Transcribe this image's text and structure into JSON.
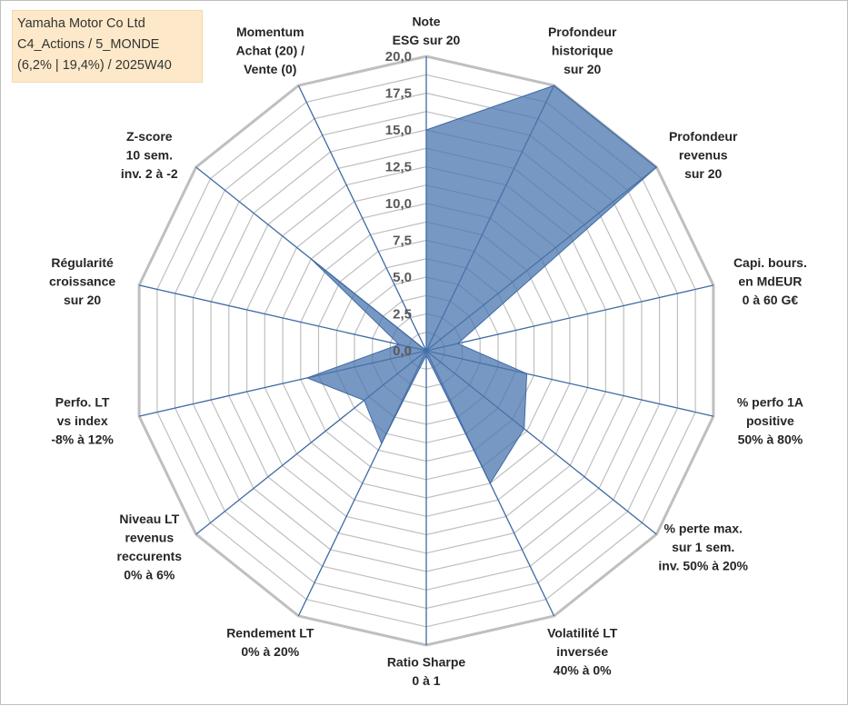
{
  "title_box": {
    "lines": [
      "Yamaha Motor Co Ltd",
      "C4_Actions / 5_MONDE",
      "(6,2% | 19,4%) / 2025W40"
    ]
  },
  "colors": {
    "fill": "#4a76ad",
    "fill_opacity": 0.75,
    "stroke": "#3e6aa3",
    "spokes": "#3e6aa3",
    "rings": "#bfbfbf",
    "title_bg": "#fde9c9"
  },
  "chart_data": {
    "type": "radar",
    "rmin": 0,
    "rmax": 20,
    "tick_values": [
      0,
      2.5,
      5,
      7.5,
      10,
      12.5,
      15,
      17.5,
      20
    ],
    "tick_labels": [
      "0,0",
      "2,5",
      "5,0",
      "7,5",
      "10,0",
      "12,5",
      "15,0",
      "17,5",
      "20,0"
    ],
    "grid": true,
    "axes": [
      {
        "label": [
          "Note",
          "ESG sur 20"
        ],
        "value": 15.0
      },
      {
        "label": [
          "Profondeur",
          "historique",
          "sur 20"
        ],
        "value": 20.0
      },
      {
        "label": [
          "Profondeur",
          "revenus",
          "sur 20"
        ],
        "value": 20.0
      },
      {
        "label": [
          "Capi. bours.",
          "en MdEUR",
          "0 à 60 G€"
        ],
        "value": 2.2
      },
      {
        "label": [
          "% perfo 1A",
          "positive",
          "50% à 80%"
        ],
        "value": 7.0
      },
      {
        "label": [
          "% perte max.",
          "sur 1 sem.",
          "inv. 50% à 20%"
        ],
        "value": 8.5
      },
      {
        "label": [
          "Volatilité LT",
          "inversée",
          "40% à 0%"
        ],
        "value": 10.0
      },
      {
        "label": [
          "Ratio Sharpe",
          "0 à 1"
        ],
        "value": 0.3
      },
      {
        "label": [
          "Rendement LT",
          "0% à 20%"
        ],
        "value": 7.0
      },
      {
        "label": [
          "Niveau LT",
          "revenus",
          "reccurents",
          "0% à 6%"
        ],
        "value": 5.4
      },
      {
        "label": [
          "Perfo. LT",
          "vs index",
          "-8% à 12%"
        ],
        "value": 8.3
      },
      {
        "label": [
          "Régularité",
          "croissance",
          "sur 20"
        ],
        "value": 1.9
      },
      {
        "label": [
          "Z-score",
          "10 sem.",
          "inv. 2 à -2"
        ],
        "value": 10.0
      },
      {
        "label": [
          "Momentum",
          "Achat (20) /",
          "Vente (0)"
        ],
        "value": 0.0
      }
    ]
  }
}
